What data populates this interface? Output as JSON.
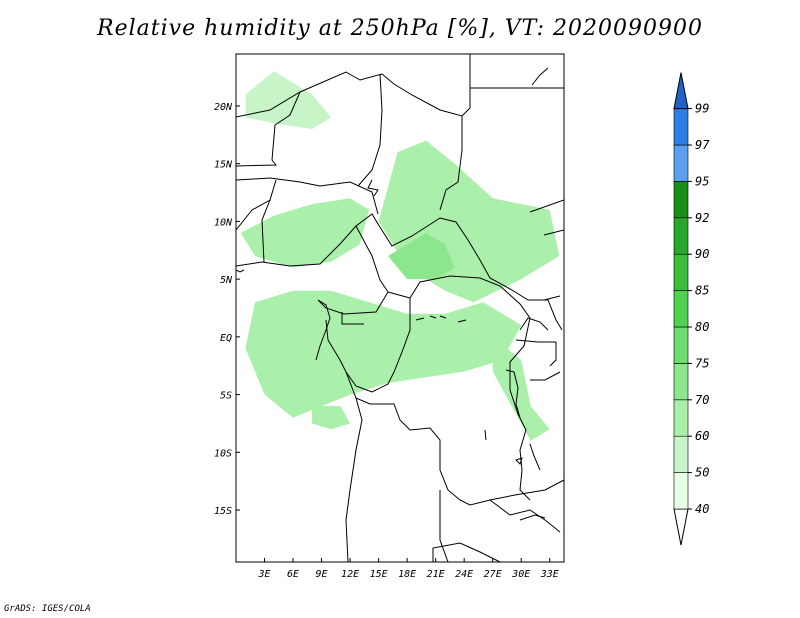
{
  "title": "Relative humidity at 250hPa [%], VT: 2020090900",
  "credit": "GrADS: IGES/COLA",
  "chart_data": {
    "type": "heatmap",
    "title": "Relative humidity at 250hPa [%], VT: 2020090900",
    "lon_range": [
      0,
      34.5
    ],
    "lat_range": [
      -19.5,
      24.5
    ],
    "lon_ticks": [
      "3E",
      "6E",
      "9E",
      "12E",
      "15E",
      "18E",
      "21E",
      "24E",
      "27E",
      "30E",
      "33E"
    ],
    "lon_tick_values": [
      3,
      6,
      9,
      12,
      15,
      18,
      21,
      24,
      27,
      30,
      33
    ],
    "lat_ticks": [
      "20N",
      "15N",
      "10N",
      "5N",
      "EQ",
      "5S",
      "10S",
      "15S"
    ],
    "lat_tick_values": [
      20,
      15,
      10,
      5,
      0,
      -5,
      -10,
      -15
    ],
    "colorbar": {
      "levels": [
        40,
        50,
        60,
        70,
        75,
        80,
        85,
        90,
        92,
        95,
        97,
        99
      ],
      "colors": [
        "#e6ffe6",
        "#c8f5c8",
        "#aaefaa",
        "#8ce68c",
        "#6edc6e",
        "#50d250",
        "#3cbe3c",
        "#2aa82a",
        "#189018",
        "#5aa0f0",
        "#2e7ee6",
        "#1e64c8"
      ]
    },
    "humidity_regions": [
      {
        "name": "sahel-west",
        "level": 60,
        "points": [
          [
            0.5,
            9
          ],
          [
            4,
            10.5
          ],
          [
            8,
            11.5
          ],
          [
            12,
            12
          ],
          [
            14,
            11
          ],
          [
            13,
            8
          ],
          [
            10,
            6.5
          ],
          [
            6,
            6
          ],
          [
            2,
            7
          ]
        ]
      },
      {
        "name": "sahel-center",
        "level": 60,
        "points": [
          [
            15,
            10
          ],
          [
            17,
            16
          ],
          [
            20,
            17
          ],
          [
            23,
            15
          ],
          [
            27,
            12
          ],
          [
            33,
            11
          ],
          [
            34,
            7
          ],
          [
            30,
            5
          ],
          [
            25,
            3
          ],
          [
            22,
            4
          ],
          [
            18,
            6
          ]
        ]
      },
      {
        "name": "congo-basin",
        "level": 60,
        "points": [
          [
            2,
            3
          ],
          [
            6,
            4
          ],
          [
            10,
            4
          ],
          [
            14,
            3
          ],
          [
            18,
            2
          ],
          [
            22,
            2
          ],
          [
            26,
            3
          ],
          [
            30,
            1
          ],
          [
            28,
            -2
          ],
          [
            24,
            -3
          ],
          [
            20,
            -3.5
          ],
          [
            16,
            -4
          ],
          [
            12,
            -5
          ],
          [
            9,
            -6
          ],
          [
            6,
            -7
          ],
          [
            3,
            -5
          ],
          [
            1,
            -1
          ]
        ]
      },
      {
        "name": "east-lakes",
        "level": 60,
        "points": [
          [
            27,
            0
          ],
          [
            30,
            -2
          ],
          [
            31,
            -6
          ],
          [
            33,
            -8
          ],
          [
            31,
            -9
          ],
          [
            29,
            -6
          ],
          [
            27,
            -3
          ]
        ]
      },
      {
        "name": "north-wave",
        "level": 50,
        "points": [
          [
            1,
            21
          ],
          [
            4,
            23
          ],
          [
            6,
            22
          ],
          [
            8,
            21
          ],
          [
            10,
            19
          ],
          [
            8,
            18
          ],
          [
            4,
            18.5
          ],
          [
            1,
            19
          ]
        ]
      },
      {
        "name": "central-core",
        "level": 70,
        "points": [
          [
            16,
            7
          ],
          [
            18,
            8
          ],
          [
            20,
            9
          ],
          [
            22,
            8
          ],
          [
            23,
            6
          ],
          [
            21,
            5
          ],
          [
            18,
            5
          ]
        ]
      },
      {
        "name": "sw-blob",
        "level": 60,
        "points": [
          [
            8,
            -6
          ],
          [
            11,
            -6
          ],
          [
            12,
            -7.5
          ],
          [
            10,
            -8
          ],
          [
            8,
            -7.5
          ]
        ]
      }
    ]
  }
}
